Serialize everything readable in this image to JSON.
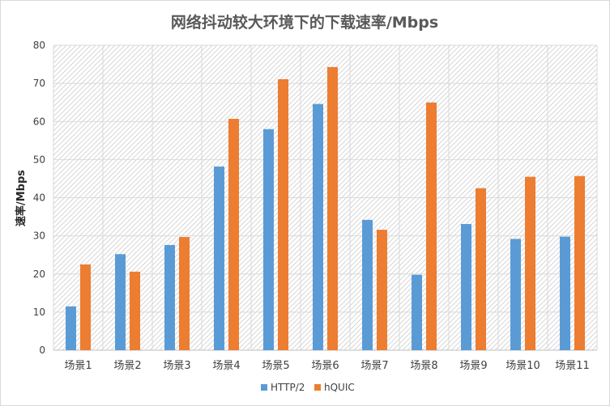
{
  "chart_data": {
    "type": "bar",
    "title": "网络抖动较大环境下的下载速率/Mbps",
    "xlabel": "",
    "ylabel": "速率/Mbps",
    "ylim": [
      0,
      80
    ],
    "yticks": [
      0,
      10,
      20,
      30,
      40,
      50,
      60,
      70,
      80
    ],
    "grid": true,
    "legend_position": "bottom",
    "categories": [
      "场景1",
      "场景2",
      "场景3",
      "场景4",
      "场景5",
      "场景6",
      "场景7",
      "场景8",
      "场景9",
      "场景10",
      "场景11"
    ],
    "series": [
      {
        "name": "HTTP/2",
        "color": "#5b9bd5",
        "values": [
          11.5,
          25.2,
          27.6,
          48.2,
          58.0,
          64.6,
          34.2,
          19.8,
          33.1,
          29.2,
          29.8
        ]
      },
      {
        "name": "hQUIC",
        "color": "#ed7d31",
        "values": [
          22.5,
          20.6,
          29.7,
          60.7,
          71.1,
          74.3,
          31.6,
          65.0,
          42.5,
          45.5,
          45.7
        ]
      }
    ]
  }
}
